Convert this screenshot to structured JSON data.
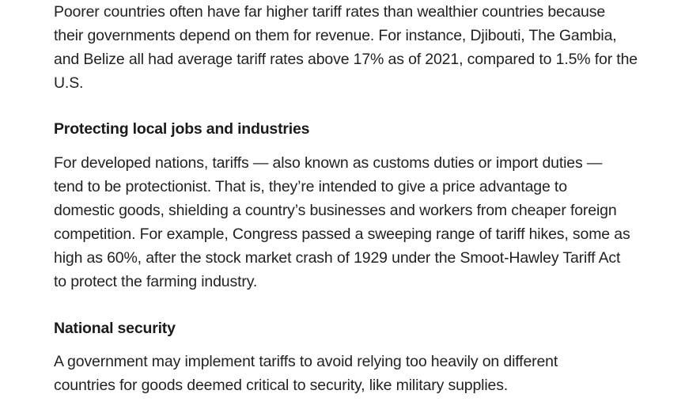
{
  "article": {
    "intro_paragraph": {
      "lines": [
        "Poorer countries often have far higher tariff rates than wealthier countries because",
        "their governments depend on them for revenue. For instance, Djibouti, The Gambia,",
        "and Belize all had average tariff rates above 17% as of 2021, compared to 1.5% for the",
        "U.S."
      ]
    },
    "section_jobs": {
      "heading": "Protecting local jobs and industries",
      "lines": [
        "For developed nations, tariffs — also known as customs duties or import duties —",
        "tend to be protectionist. That is, they’re intended to give a price advantage to",
        "domestic goods, shielding a country’s businesses and workers from cheaper foreign",
        "competition. For example, Congress passed a sweeping range of tariff hikes, some as",
        "high as 60%, after the stock market crash of 1929 under the Smoot-Hawley Tariff Act",
        "to protect the farming industry."
      ]
    },
    "section_security": {
      "heading": "National security",
      "lines": [
        "A government may implement tariffs to avoid relying too heavily on different",
        "countries for goods deemed critical to security, like military supplies."
      ]
    }
  }
}
